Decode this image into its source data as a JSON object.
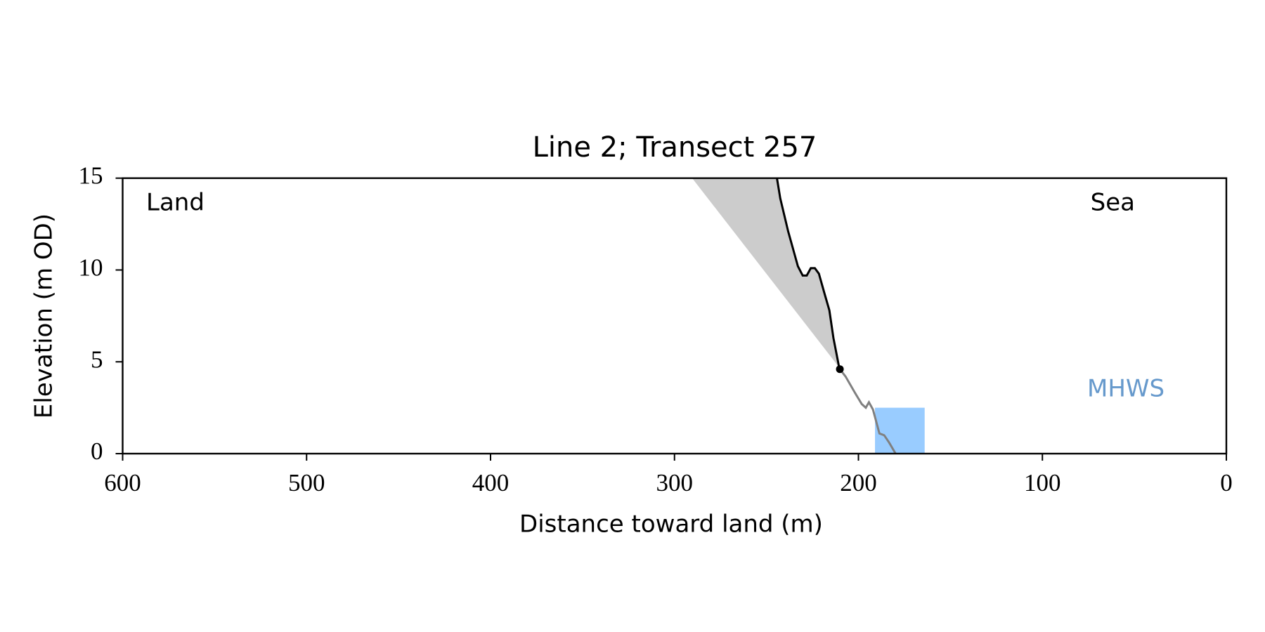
{
  "chart_data": {
    "type": "line",
    "title": "Line 2; Transect 257",
    "xlabel": "Distance toward land (m)",
    "ylabel": "Elevation (m OD)",
    "xlim": [
      600,
      0
    ],
    "ylim": [
      0,
      15
    ],
    "xticks": [
      600,
      500,
      400,
      300,
      200,
      100,
      0
    ],
    "yticks": [
      0,
      5,
      10,
      15
    ],
    "series": [
      {
        "color": "#cccccc",
        "fill": true,
        "x": [
          290.4,
          210.5,
          213.6,
          215.8,
          218.4,
          221.5,
          223.7,
          225.9,
          228.1,
          230.3,
          232.9,
          238.2,
          242.5,
          244.3
        ],
        "values": [
          15,
          4.7,
          6.3,
          7.8,
          8.7,
          9.8,
          10.1,
          10.1,
          9.7,
          9.7,
          10.2,
          12.1,
          13.9,
          15
        ]
      },
      {
        "color": "#000000",
        "x": [
          244.3,
          242.5,
          238.2,
          232.9,
          230.3,
          228.1,
          225.9,
          223.7,
          221.5,
          218.4,
          215.8,
          213.6,
          210.5
        ],
        "values": [
          15,
          13.9,
          12.1,
          10.2,
          9.7,
          9.7,
          10.1,
          10.1,
          9.8,
          8.7,
          7.8,
          6.3,
          4.7
        ]
      },
      {
        "color": "#808080",
        "x": [
          210.1,
          207,
          201.8,
          198.2,
          196,
          194.3,
          192.1,
          188.6,
          186,
          183.3,
          179.8
        ],
        "values": [
          4.6,
          4.2,
          3.3,
          2.7,
          2.5,
          2.8,
          2.4,
          1.1,
          1.0,
          0.6,
          0
        ]
      }
    ],
    "points": {
      "color": "#000000",
      "x": [
        210.1
      ],
      "values": [
        4.6
      ]
    },
    "band": {
      "color": "#99ccff",
      "x": [
        191,
        164
      ],
      "values": [
        2.5
      ]
    },
    "annotations": [
      {
        "text": "Land"
      },
      {
        "text": "Sea"
      },
      {
        "text": "MHWS",
        "color": "#6699cc"
      }
    ]
  }
}
